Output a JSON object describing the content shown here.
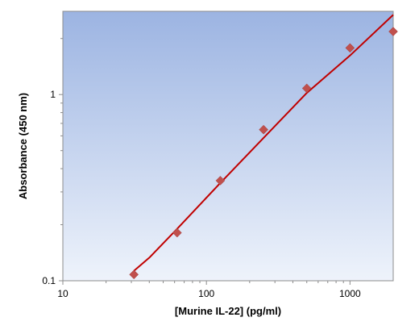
{
  "chart_data": {
    "type": "scatter",
    "title": "",
    "xlabel": "[Murine IL-22] (pg/ml)",
    "ylabel": "Absorbance (450 nm)",
    "x_scale": "log",
    "y_scale": "log",
    "xlim": [
      10,
      2000
    ],
    "ylim": [
      0.1,
      2.8
    ],
    "x_ticks": [
      {
        "value": 10,
        "label": "10"
      },
      {
        "value": 100,
        "label": "100"
      },
      {
        "value": 1000,
        "label": "1000"
      }
    ],
    "y_ticks": [
      {
        "value": 0.1,
        "label": "0.1"
      },
      {
        "value": 1,
        "label": "1"
      }
    ],
    "grid": false,
    "legend": "none",
    "background": {
      "top": "#9cb4e2",
      "bottom": "#eef3fb"
    },
    "series": [
      {
        "kind": "points",
        "marker": "diamond",
        "color": "#c0504d",
        "x": [
          31.25,
          62.5,
          125,
          250,
          500,
          1000,
          2000
        ],
        "y": [
          0.108,
          0.181,
          0.345,
          0.648,
          1.08,
          1.78,
          2.18
        ]
      },
      {
        "kind": "fit-line",
        "color": "#c00000",
        "x": [
          31.25,
          40,
          62.5,
          125,
          250,
          500,
          1000,
          2000
        ],
        "y": [
          0.113,
          0.133,
          0.19,
          0.335,
          0.585,
          1.02,
          1.62,
          2.68
        ]
      }
    ]
  }
}
